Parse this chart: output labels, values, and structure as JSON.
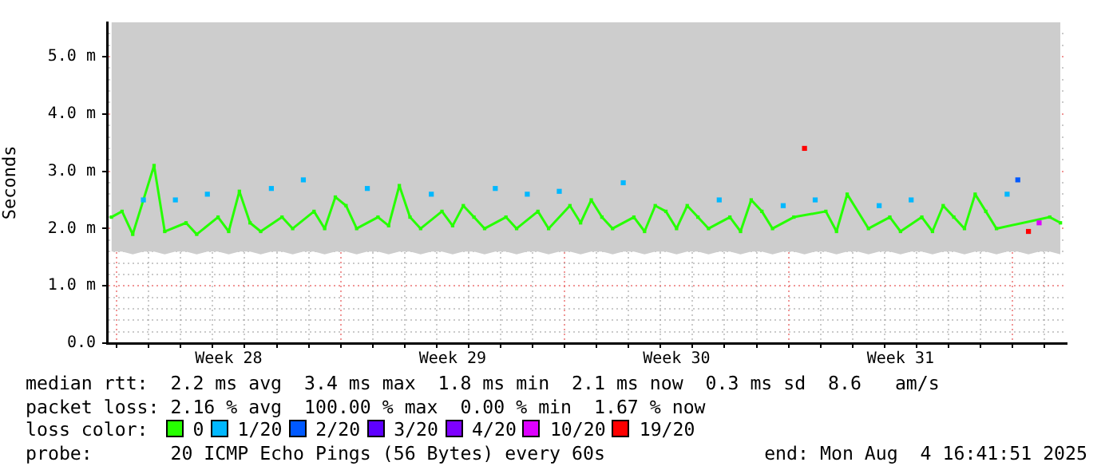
{
  "chart_data": {
    "type": "line",
    "ylabel": "Seconds",
    "legend_title": "loss color:",
    "legend": "bottom",
    "grid": true,
    "marker": "square",
    "xlim": [
      "2025-07-05T16:41",
      "2025-08-04T16:41"
    ],
    "ylim": [
      0,
      5.6
    ],
    "yticks": [
      {
        "value": 0,
        "label": "0.0"
      },
      {
        "value": 0.2,
        "label": null
      },
      {
        "value": 0.4,
        "label": null
      },
      {
        "value": 0.6,
        "label": null
      },
      {
        "value": 0.8,
        "label": null
      },
      {
        "value": 1,
        "label": "1.0 m"
      },
      {
        "value": 1.2,
        "label": null
      },
      {
        "value": 1.4,
        "label": null
      },
      {
        "value": 1.6,
        "label": null
      },
      {
        "value": 1.8,
        "label": null
      },
      {
        "value": 2,
        "label": "2.0 m"
      },
      {
        "value": 2.2,
        "label": null
      },
      {
        "value": 2.4,
        "label": null
      },
      {
        "value": 2.6,
        "label": null
      },
      {
        "value": 2.8,
        "label": null
      },
      {
        "value": 3,
        "label": "3.0 m"
      },
      {
        "value": 3.2,
        "label": null
      },
      {
        "value": 3.4,
        "label": null
      },
      {
        "value": 3.6,
        "label": null
      },
      {
        "value": 3.8,
        "label": null
      },
      {
        "value": 4,
        "label": "4.0 m"
      },
      {
        "value": 4.2,
        "label": null
      },
      {
        "value": 4.4,
        "label": null
      },
      {
        "value": 4.6,
        "label": null
      },
      {
        "value": 4.8,
        "label": null
      },
      {
        "value": 5,
        "label": "5.0 m"
      },
      {
        "value": 5.2,
        "label": null
      },
      {
        "value": 5.4,
        "label": null
      }
    ],
    "xticks": [
      {
        "value": "2025-07-06",
        "label": null
      },
      {
        "value": "2025-07-07",
        "label": null
      },
      {
        "value": "2025-07-08",
        "label": null
      },
      {
        "value": "2025-07-09",
        "label": null
      },
      {
        "value": "2025-07-10",
        "label": null
      },
      {
        "value": "2025-07-11",
        "label": null
      },
      {
        "value": "2025-07-12",
        "label": null
      },
      {
        "value": "2025-07-13",
        "label": null
      },
      {
        "value": "2025-07-14",
        "label": null
      },
      {
        "value": "2025-07-15",
        "label": null
      },
      {
        "value": "2025-07-16",
        "label": null
      },
      {
        "value": "2025-07-17",
        "label": null
      },
      {
        "value": "2025-07-18",
        "label": null
      },
      {
        "value": "2025-07-19",
        "label": null
      },
      {
        "value": "2025-07-20",
        "label": null
      },
      {
        "value": "2025-07-21",
        "label": null
      },
      {
        "value": "2025-07-22",
        "label": null
      },
      {
        "value": "2025-07-23",
        "label": null
      },
      {
        "value": "2025-07-24",
        "label": null
      },
      {
        "value": "2025-07-25",
        "label": null
      },
      {
        "value": "2025-07-26",
        "label": null
      },
      {
        "value": "2025-07-27",
        "label": null
      },
      {
        "value": "2025-07-28",
        "label": null
      },
      {
        "value": "2025-07-29",
        "label": null
      },
      {
        "value": "2025-07-30",
        "label": null
      },
      {
        "value": "2025-07-31",
        "label": null
      },
      {
        "value": "2025-08-01",
        "label": null
      },
      {
        "value": "2025-08-02",
        "label": null
      },
      {
        "value": "2025-08-03",
        "label": null
      },
      {
        "value": "2025-08-04",
        "label": null
      },
      {
        "value": "2025-07-09T12:00",
        "label": "Week 28"
      },
      {
        "value": "2025-07-16T12:00",
        "label": "Week 29"
      },
      {
        "value": "2025-07-23T12:00",
        "label": "Week 30"
      },
      {
        "value": "2025-07-30T12:00",
        "label": "Week 31"
      }
    ],
    "x": [
      "2025-07-05T20:00",
      "2025-07-06T04:00",
      "2025-07-06T12:00",
      "2025-07-06T20:00",
      "2025-07-07T04:00",
      "2025-07-07T12:00",
      "2025-07-07T20:00",
      "2025-07-08T04:00",
      "2025-07-08T12:00",
      "2025-07-08T20:00",
      "2025-07-09T04:00",
      "2025-07-09T12:00",
      "2025-07-09T20:00",
      "2025-07-10T04:00",
      "2025-07-10T12:00",
      "2025-07-10T20:00",
      "2025-07-11T04:00",
      "2025-07-11T12:00",
      "2025-07-11T20:00",
      "2025-07-12T04:00",
      "2025-07-12T12:00",
      "2025-07-12T20:00",
      "2025-07-13T04:00",
      "2025-07-13T12:00",
      "2025-07-13T20:00",
      "2025-07-14T04:00",
      "2025-07-14T12:00",
      "2025-07-14T20:00",
      "2025-07-15T04:00",
      "2025-07-15T12:00",
      "2025-07-15T20:00",
      "2025-07-16T04:00",
      "2025-07-16T12:00",
      "2025-07-16T20:00",
      "2025-07-17T04:00",
      "2025-07-17T12:00",
      "2025-07-17T20:00",
      "2025-07-18T04:00",
      "2025-07-18T12:00",
      "2025-07-18T20:00",
      "2025-07-19T04:00",
      "2025-07-19T12:00",
      "2025-07-19T20:00",
      "2025-07-20T04:00",
      "2025-07-20T12:00",
      "2025-07-20T20:00",
      "2025-07-21T04:00",
      "2025-07-21T12:00",
      "2025-07-21T20:00",
      "2025-07-22T04:00",
      "2025-07-22T12:00",
      "2025-07-22T20:00",
      "2025-07-23T04:00",
      "2025-07-23T12:00",
      "2025-07-23T20:00",
      "2025-07-24T04:00",
      "2025-07-24T12:00",
      "2025-07-24T20:00",
      "2025-07-25T04:00",
      "2025-07-25T12:00",
      "2025-07-25T20:00",
      "2025-07-26T04:00",
      "2025-07-26T12:00",
      "2025-07-26T20:00",
      "2025-07-27T04:00",
      "2025-07-27T12:00",
      "2025-07-27T20:00",
      "2025-07-28T04:00",
      "2025-07-28T12:00",
      "2025-07-28T20:00",
      "2025-07-29T04:00",
      "2025-07-29T12:00",
      "2025-07-29T20:00",
      "2025-07-30T04:00",
      "2025-07-30T12:00",
      "2025-07-30T20:00",
      "2025-07-31T04:00",
      "2025-07-31T12:00",
      "2025-07-31T20:00",
      "2025-08-01T04:00",
      "2025-08-01T12:00",
      "2025-08-01T20:00",
      "2025-08-02T04:00",
      "2025-08-02T12:00",
      "2025-08-02T20:00",
      "2025-08-03T04:00",
      "2025-08-03T12:00",
      "2025-08-03T20:00",
      "2025-08-04T04:00",
      "2025-08-04T12:00"
    ],
    "series": [
      {
        "name": "0",
        "color": "#26ff00",
        "values": [
          2.2,
          2.3,
          1.9,
          null,
          3.1,
          1.95,
          null,
          2.1,
          1.9,
          null,
          2.2,
          1.95,
          2.65,
          2.1,
          1.95,
          null,
          2.2,
          2.0,
          null,
          2.3,
          2.0,
          2.55,
          2.4,
          2.0,
          null,
          2.2,
          2.05,
          2.75,
          2.2,
          2.0,
          null,
          2.3,
          2.05,
          2.4,
          2.2,
          2.0,
          null,
          2.2,
          2.0,
          null,
          2.3,
          2.0,
          null,
          2.4,
          2.1,
          2.5,
          2.2,
          2.0,
          null,
          2.2,
          1.95,
          2.4,
          2.3,
          2.0,
          2.4,
          2.2,
          2.0,
          null,
          2.2,
          1.95,
          2.5,
          2.3,
          2.0,
          null,
          2.2,
          null,
          null,
          2.3,
          1.95,
          2.6,
          null,
          2.0,
          null,
          2.2,
          1.95,
          null,
          2.2,
          1.95,
          2.4,
          2.2,
          2.0,
          2.6,
          2.3,
          2.0,
          null,
          null,
          null,
          null,
          2.2,
          2.1
        ],
        "lower": [
          1.6,
          1.6,
          1.55,
          1.6,
          1.6,
          1.55,
          1.6,
          1.6,
          1.55,
          1.6,
          1.6,
          1.55,
          1.6,
          1.6,
          1.55,
          1.6,
          1.6,
          1.55,
          1.6,
          1.6,
          1.55,
          1.6,
          1.6,
          1.55,
          1.6,
          1.6,
          1.55,
          1.6,
          1.6,
          1.55,
          1.6,
          1.6,
          1.55,
          1.6,
          1.6,
          1.55,
          1.6,
          1.6,
          1.55,
          1.6,
          1.6,
          1.55,
          1.6,
          1.6,
          1.55,
          1.6,
          1.6,
          1.55,
          1.6,
          1.6,
          1.55,
          1.6,
          1.6,
          1.55,
          1.6,
          1.6,
          1.55,
          1.6,
          1.6,
          1.55,
          1.6,
          1.6,
          1.55,
          1.6,
          1.6,
          1.55,
          1.6,
          1.6,
          1.55,
          1.6,
          1.6,
          1.55,
          1.6,
          1.6,
          1.55,
          1.6,
          1.6,
          1.55,
          1.6,
          1.6,
          1.55,
          1.6,
          1.6,
          1.55,
          1.6,
          1.6,
          1.55,
          1.6,
          1.6,
          1.55
        ],
        "upper": [
          5.6,
          5.6,
          5.6,
          5.6,
          5.6,
          5.6,
          5.6,
          5.6,
          5.6,
          5.6,
          5.6,
          5.6,
          5.6,
          5.6,
          5.6,
          5.6,
          5.6,
          5.6,
          5.6,
          5.6,
          5.6,
          5.6,
          5.6,
          5.6,
          5.6,
          5.6,
          5.6,
          5.6,
          5.6,
          5.6,
          5.6,
          5.6,
          5.6,
          5.6,
          5.6,
          5.6,
          5.6,
          5.6,
          5.6,
          5.6,
          5.6,
          5.6,
          5.6,
          5.6,
          5.6,
          5.6,
          5.6,
          5.6,
          5.6,
          5.6,
          5.6,
          5.6,
          5.6,
          5.6,
          5.6,
          5.6,
          5.6,
          5.6,
          5.6,
          5.6,
          5.6,
          5.6,
          5.6,
          5.6,
          5.6,
          5.6,
          5.6,
          5.6,
          5.6,
          5.6,
          5.6,
          5.6,
          5.6,
          5.6,
          5.6,
          5.6,
          5.6,
          5.6,
          5.6,
          5.6,
          5.6,
          5.6,
          5.6,
          5.6,
          5.6,
          5.6,
          5.6,
          5.6,
          5.6,
          5.6
        ]
      },
      {
        "name": "1/20",
        "color": "#00b8ff",
        "type": "scatter",
        "x": [
          "2025-07-06T20:00",
          "2025-07-07T20:00",
          "2025-07-08T20:00",
          "2025-07-10T20:00",
          "2025-07-11T20:00",
          "2025-07-13T20:00",
          "2025-07-15T20:00",
          "2025-07-17T20:00",
          "2025-07-18T20:00",
          "2025-07-19T20:00",
          "2025-07-21T20:00",
          "2025-07-24T20:00",
          "2025-07-26T20:00",
          "2025-07-27T20:00",
          "2025-07-29T20:00",
          "2025-07-30T20:00",
          "2025-08-02T20:00"
        ],
        "values": [
          2.5,
          2.5,
          2.6,
          2.7,
          2.85,
          2.7,
          2.6,
          2.7,
          2.6,
          2.65,
          2.8,
          2.5,
          2.4,
          2.5,
          2.4,
          2.5,
          2.6
        ]
      },
      {
        "name": "2/20",
        "color": "#0059ff",
        "type": "scatter",
        "x": [
          "2025-08-03T04:00"
        ],
        "values": [
          2.85
        ]
      },
      {
        "name": "3/20",
        "color": "#5e00ff",
        "type": "scatter",
        "values": [
          null,
          null,
          null,
          null,
          null,
          null,
          null,
          null,
          null,
          null,
          null,
          null,
          null,
          null,
          null,
          null,
          null,
          null,
          null,
          null,
          null,
          null,
          null,
          null,
          null,
          null,
          null,
          null,
          null,
          null,
          null,
          null,
          null,
          null,
          null,
          null,
          null,
          null,
          null,
          null,
          null,
          null,
          null,
          null,
          null,
          null,
          null,
          null,
          null,
          null,
          null,
          null,
          null,
          null,
          null,
          null,
          null,
          null,
          null,
          null,
          null,
          null,
          null,
          null,
          null,
          null,
          null,
          null,
          null,
          null,
          null,
          null,
          null,
          null,
          null,
          null,
          null,
          null,
          null,
          null,
          null,
          null,
          null,
          null,
          null,
          null,
          null,
          null,
          null,
          null
        ]
      },
      {
        "name": "4/20",
        "color": "#7e00ff",
        "type": "scatter",
        "values": [
          null,
          null,
          null,
          null,
          null,
          null,
          null,
          null,
          null,
          null,
          null,
          null,
          null,
          null,
          null,
          null,
          null,
          null,
          null,
          null,
          null,
          null,
          null,
          null,
          null,
          null,
          null,
          null,
          null,
          null,
          null,
          null,
          null,
          null,
          null,
          null,
          null,
          null,
          null,
          null,
          null,
          null,
          null,
          null,
          null,
          null,
          null,
          null,
          null,
          null,
          null,
          null,
          null,
          null,
          null,
          null,
          null,
          null,
          null,
          null,
          null,
          null,
          null,
          null,
          null,
          null,
          null,
          null,
          null,
          null,
          null,
          null,
          null,
          null,
          null,
          null,
          null,
          null,
          null,
          null,
          null,
          null,
          null,
          null,
          null,
          null,
          null,
          null,
          null,
          null
        ]
      },
      {
        "name": "10/20",
        "color": "#dd00ff",
        "type": "scatter",
        "x": [
          "2025-08-03T20:00"
        ],
        "values": [
          2.1
        ]
      },
      {
        "name": "19/20",
        "color": "#ff0000",
        "type": "scatter",
        "x": [
          "2025-07-27T12:00",
          "2025-08-03T12:00"
        ],
        "values": [
          3.4,
          1.95
        ]
      }
    ],
    "annotations": [
      "median rtt:  2.2 ms avg  3.4 ms max  1.8 ms min  2.1 ms now  0.3 ms sd  8.6   am/s",
      "packet loss: 2.16 % avg  100.00 % max  0.00 % min  1.67 % now",
      "probe:       20 ICMP Echo Pings (56 Bytes) every 60s",
      "end: Mon Aug  4 16:41:51 2025"
    ]
  }
}
